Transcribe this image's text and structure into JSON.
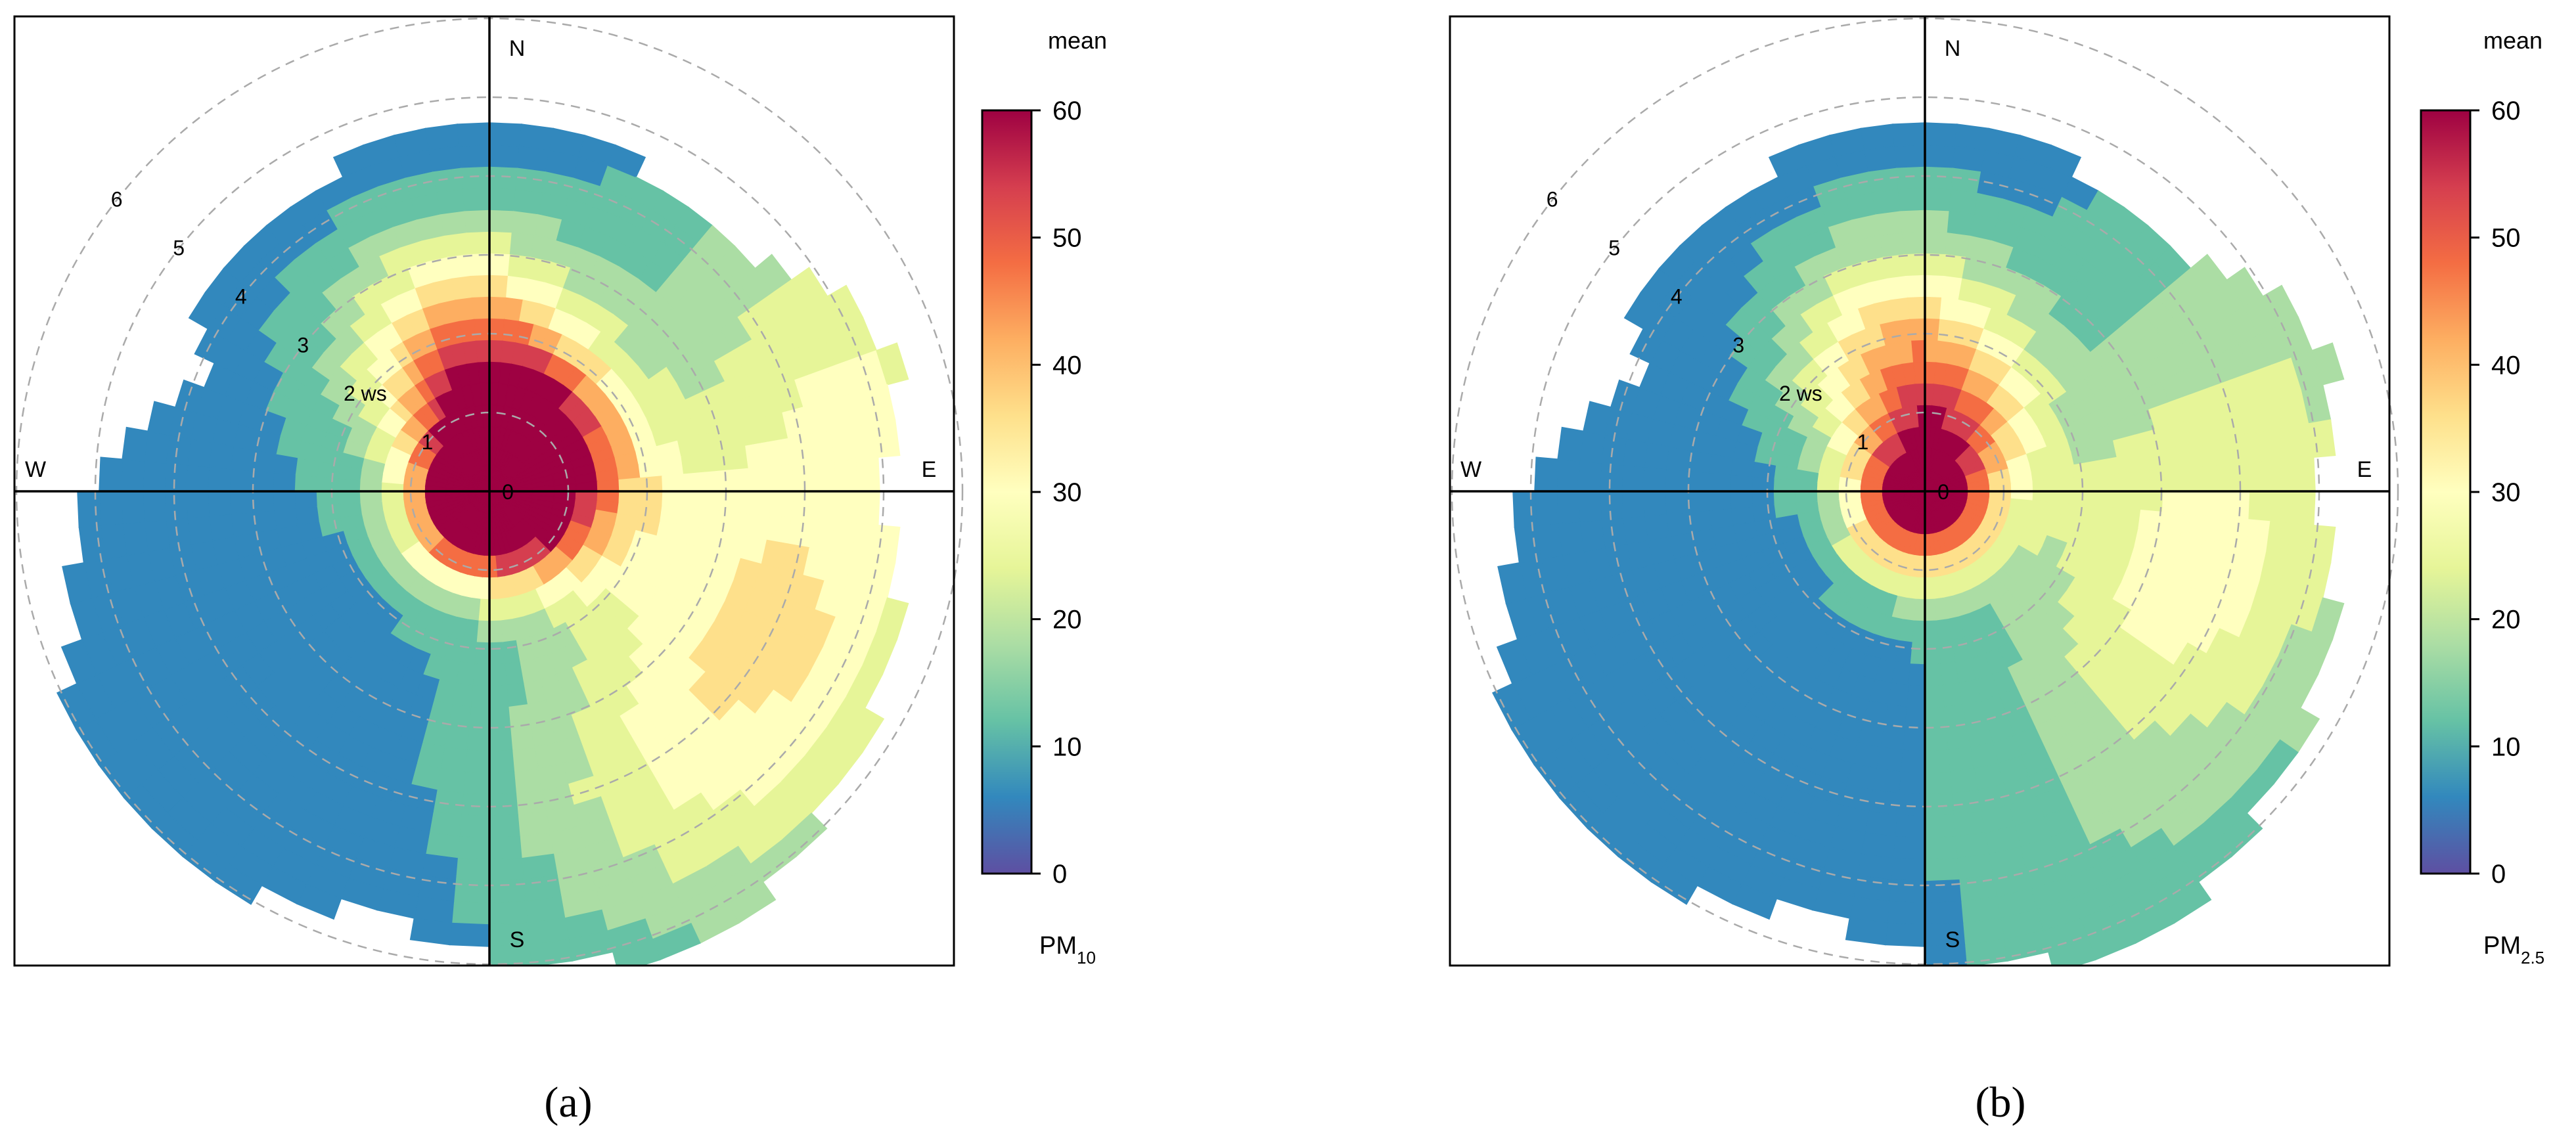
{
  "colors": {
    "scale": [
      "#5E4FA2",
      "#3288BD",
      "#66C2A5",
      "#ABDDA4",
      "#E6F598",
      "#FFFFBF",
      "#FEE08B",
      "#FDAE61",
      "#F46D43",
      "#D53E4F",
      "#9E0142"
    ],
    "axis": "#000000",
    "ring": "#aaaaaa",
    "frame": "#000000"
  },
  "panels": [
    {
      "caption": "(a)",
      "colorbar_title": "mean",
      "pollutant_label_main": "PM",
      "pollutant_label_sub": "10"
    },
    {
      "caption": "(b)",
      "colorbar_title": "mean",
      "pollutant_label_main": "PM",
      "pollutant_label_sub": "2.5"
    }
  ],
  "chart_data": [
    {
      "type": "heatmap",
      "subtype": "polar-plot",
      "radial_variable": "ws",
      "radial_ticks": [
        "0",
        "1",
        "2",
        "3",
        "4",
        "5",
        "6"
      ],
      "radial_tick_unit": "ws",
      "rlim": [
        0,
        6
      ],
      "directions": [
        "N",
        "E",
        "S",
        "W"
      ],
      "colorbar": {
        "min": 0,
        "max": 60,
        "ticks": [
          "0",
          "10",
          "20",
          "30",
          "40",
          "50",
          "60"
        ],
        "title": "mean"
      },
      "pollutant": "PM10",
      "grid": true,
      "hotspots": [
        {
          "dir_deg": 200,
          "ws": 0.3,
          "value": 60
        },
        {
          "dir_deg": 20,
          "ws": 0.8,
          "value": 45
        },
        {
          "dir_deg": 350,
          "ws": 1.9,
          "value": 40
        },
        {
          "dir_deg": 90,
          "ws": 1.0,
          "value": 30
        },
        {
          "dir_deg": 115,
          "ws": 4.0,
          "value": 26
        },
        {
          "dir_deg": 70,
          "ws": 5.2,
          "value": 25
        },
        {
          "dir_deg": 150,
          "ws": 4.5,
          "value": 20
        },
        {
          "dir_deg": 250,
          "ws": 3.5,
          "value": 8
        },
        {
          "dir_deg": 300,
          "ws": 4.0,
          "value": 6
        }
      ]
    },
    {
      "type": "heatmap",
      "subtype": "polar-plot",
      "radial_variable": "ws",
      "radial_ticks": [
        "0",
        "1",
        "2",
        "3",
        "4",
        "5",
        "6"
      ],
      "radial_tick_unit": "ws",
      "rlim": [
        0,
        6
      ],
      "directions": [
        "N",
        "E",
        "S",
        "W"
      ],
      "colorbar": {
        "min": 0,
        "max": 60,
        "ticks": [
          "0",
          "10",
          "20",
          "30",
          "40",
          "50",
          "60"
        ],
        "title": "mean"
      },
      "pollutant": "PM2.5",
      "grid": true,
      "hotspots": [
        {
          "dir_deg": 200,
          "ws": 0.3,
          "value": 50
        },
        {
          "dir_deg": 350,
          "ws": 1.9,
          "value": 35
        },
        {
          "dir_deg": 20,
          "ws": 0.8,
          "value": 32
        },
        {
          "dir_deg": 110,
          "ws": 3.5,
          "value": 25
        },
        {
          "dir_deg": 70,
          "ws": 5.0,
          "value": 18
        },
        {
          "dir_deg": 150,
          "ws": 5.0,
          "value": 13
        },
        {
          "dir_deg": 250,
          "ws": 3.5,
          "value": 6
        },
        {
          "dir_deg": 300,
          "ws": 4.0,
          "value": 4
        }
      ]
    }
  ]
}
